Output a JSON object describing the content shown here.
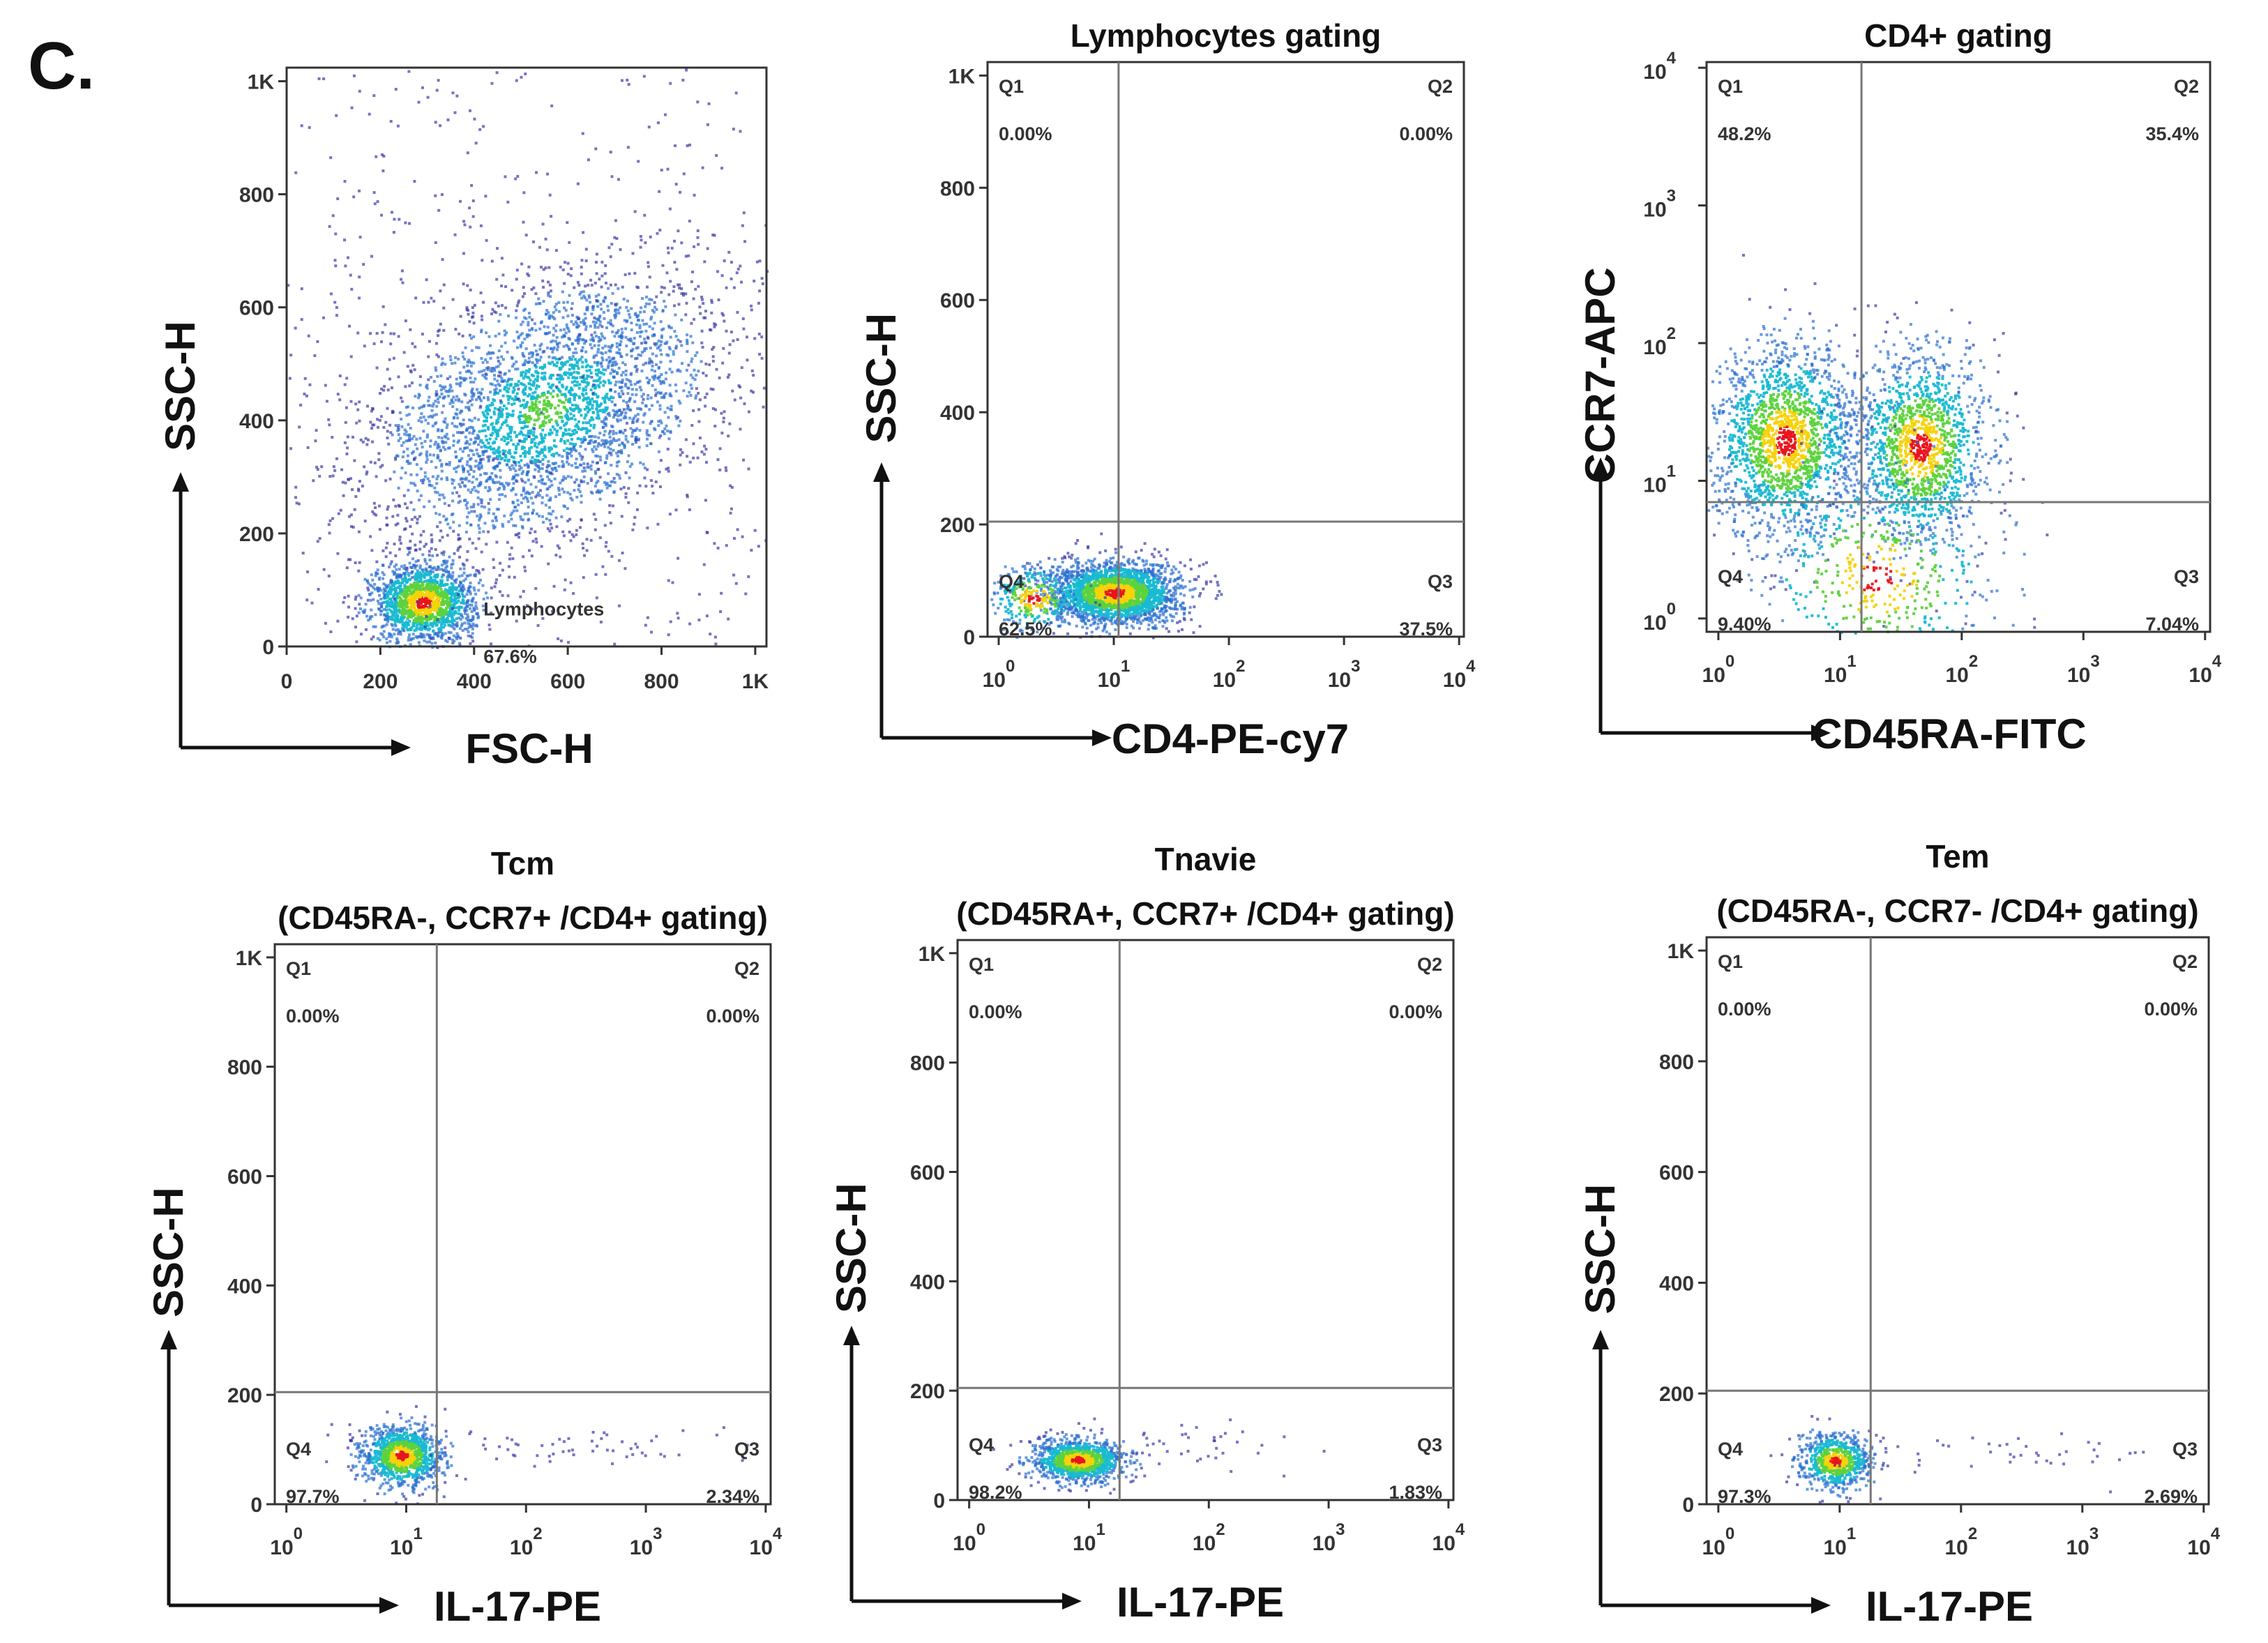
{
  "figure_label": "C.",
  "chart_data": [
    {
      "type": "scatter",
      "title": [],
      "xlabel": "FSC-H",
      "ylabel": "SSC-H",
      "xscale": "linear",
      "yscale": "linear",
      "xlim": [
        0,
        1024
      ],
      "ylim": [
        0,
        1024
      ],
      "xticks": [
        "0",
        "200",
        "400",
        "600",
        "800",
        "1K"
      ],
      "yticks": [
        "0",
        "200",
        "400",
        "600",
        "800",
        "1K"
      ],
      "gate_label": {
        "name": "Lymphocytes",
        "percent": "67.6%"
      },
      "populations": [
        {
          "x": 550,
          "y": 420,
          "sd_x": 170,
          "sd_y": 120,
          "n": 3200
        },
        {
          "x": 290,
          "y": 80,
          "sd_x": 55,
          "sd_y": 35,
          "n": 1600
        },
        {
          "uniform": true,
          "n": 500
        }
      ]
    },
    {
      "type": "scatter",
      "title": [
        "Lymphocytes gating"
      ],
      "xlabel": "CD4-PE-cy7",
      "ylabel": "SSC-H",
      "xscale": "log",
      "yscale": "linear",
      "xlim": [
        0.8,
        11000
      ],
      "ylim": [
        0,
        1024
      ],
      "xticks": [
        "10|0",
        "10|1",
        "10|2",
        "10|3",
        "10|4"
      ],
      "yticks": [
        "0",
        "200",
        "400",
        "600",
        "800",
        "1K"
      ],
      "gates": {
        "x": 11,
        "y": 205
      },
      "quadrants": {
        "Q1": "0.00%",
        "Q2": "0.00%",
        "Q3": "37.5%",
        "Q4": "62.5%"
      },
      "populations": [
        {
          "x": 10,
          "y": 80,
          "sd_x_decades": 0.28,
          "sd_y": 28,
          "n": 2400
        },
        {
          "x": 2,
          "y": 70,
          "sd_x_decades": 0.2,
          "sd_y": 30,
          "n": 300
        }
      ]
    },
    {
      "type": "scatter",
      "title": [
        "CD4+ gating"
      ],
      "xlabel": "CD45RA-FITC",
      "ylabel": "CCR7-APC",
      "xscale": "log",
      "yscale": "log",
      "xlim": [
        0.8,
        11000
      ],
      "ylim": [
        0.8,
        11000
      ],
      "xticks": [
        "10|0",
        "10|1",
        "10|2",
        "10|3",
        "10|4"
      ],
      "yticks": [
        "10|0",
        "10|1",
        "10|2",
        "10|3",
        "10|4"
      ],
      "gates": {
        "x": 15,
        "y": 7
      },
      "quadrants": {
        "Q1": "48.2%",
        "Q2": "35.4%",
        "Q3": "7.04%",
        "Q4": "9.40%"
      },
      "populations": [
        {
          "x": 3.5,
          "y": 20,
          "sd_x_decades": 0.3,
          "sd_y_decades": 0.35,
          "n": 1800
        },
        {
          "x": 45,
          "y": 18,
          "sd_x_decades": 0.28,
          "sd_y_decades": 0.35,
          "n": 1500
        },
        {
          "x": 20,
          "y": 2,
          "sd_x_decades": 0.5,
          "sd_y_decades": 0.4,
          "n": 500
        }
      ]
    },
    {
      "type": "scatter",
      "title": [
        "Tcm",
        "(CD45RA-, CCR7+ /CD4+ gating)"
      ],
      "xlabel": "IL-17-PE",
      "ylabel": "SSC-H",
      "xscale": "log",
      "yscale": "linear",
      "xlim": [
        0.8,
        11000
      ],
      "ylim": [
        0,
        1024
      ],
      "xticks": [
        "10|0",
        "10|1",
        "10|2",
        "10|3",
        "10|4"
      ],
      "yticks": [
        "0",
        "200",
        "400",
        "600",
        "800",
        "1K"
      ],
      "gates": {
        "x": 18,
        "y": 205
      },
      "quadrants": {
        "Q1": "0.00%",
        "Q2": "0.00%",
        "Q3": "2.34%",
        "Q4": "97.7%"
      },
      "populations": [
        {
          "x": 9,
          "y": 90,
          "sd_x_decades": 0.17,
          "sd_y": 28,
          "n": 1100
        },
        {
          "x": 300,
          "y": 110,
          "sd_x_decades": 0.7,
          "sd_y": 20,
          "n": 60
        }
      ]
    },
    {
      "type": "scatter",
      "title": [
        "Tnavie",
        "(CD45RA+, CCR7+ /CD4+ gating)"
      ],
      "xlabel": "IL-17-PE",
      "ylabel": "SSC-H",
      "xscale": "log",
      "yscale": "linear",
      "xlim": [
        0.8,
        11000
      ],
      "ylim": [
        0,
        1024
      ],
      "xticks": [
        "10|0",
        "10|1",
        "10|2",
        "10|3",
        "10|4"
      ],
      "yticks": [
        "0",
        "200",
        "400",
        "600",
        "800",
        "1K"
      ],
      "gates": {
        "x": 18,
        "y": 205
      },
      "quadrants": {
        "Q1": "0.00%",
        "Q2": "0.00%",
        "Q3": "1.83%",
        "Q4": "98.2%"
      },
      "populations": [
        {
          "x": 8,
          "y": 75,
          "sd_x_decades": 0.2,
          "sd_y": 20,
          "n": 1100
        },
        {
          "x": 100,
          "y": 100,
          "sd_x_decades": 0.6,
          "sd_y": 20,
          "n": 40
        }
      ]
    },
    {
      "type": "scatter",
      "title": [
        "Tem",
        "(CD45RA-, CCR7- /CD4+ gating)"
      ],
      "xlabel": "IL-17-PE",
      "ylabel": "SSC-H",
      "xscale": "log",
      "yscale": "linear",
      "xlim": [
        0.8,
        11000
      ],
      "ylim": [
        0,
        1024
      ],
      "xticks": [
        "10|0",
        "10|1",
        "10|2",
        "10|3",
        "10|4"
      ],
      "yticks": [
        "0",
        "200",
        "400",
        "600",
        "800",
        "1K"
      ],
      "gates": {
        "x": 18,
        "y": 205
      },
      "quadrants": {
        "Q1": "0.00%",
        "Q2": "0.00%",
        "Q3": "2.69%",
        "Q4": "97.3%"
      },
      "populations": [
        {
          "x": 9,
          "y": 80,
          "sd_x_decades": 0.15,
          "sd_y": 25,
          "n": 700
        },
        {
          "x": 400,
          "y": 90,
          "sd_x_decades": 0.6,
          "sd_y": 18,
          "n": 40
        }
      ]
    }
  ]
}
